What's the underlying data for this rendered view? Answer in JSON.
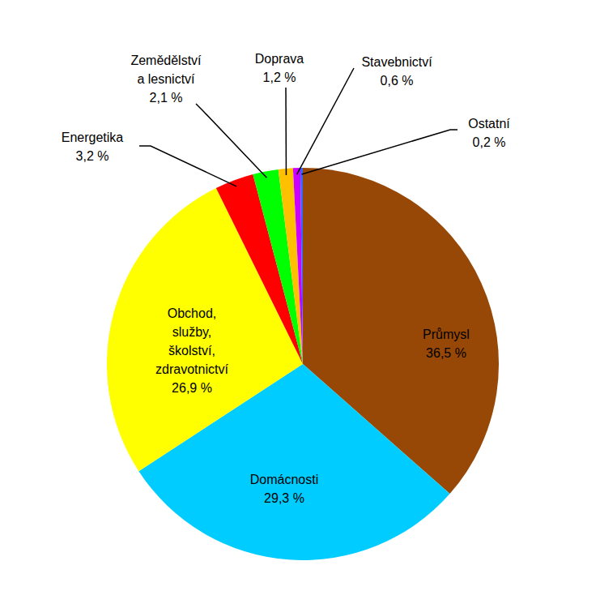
{
  "chart_data": {
    "type": "pie",
    "categories": [
      "Průmysl",
      "Domácnosti",
      "Obchod,\nslužby,\nškolství,\nzdravotnictví",
      "Energetika",
      "Zemědělství\na lesnictví",
      "Doprava",
      "Stavebnictví",
      "Ostatní"
    ],
    "values": [
      36.5,
      29.3,
      26.9,
      3.2,
      2.1,
      1.2,
      0.6,
      0.2
    ],
    "value_labels": [
      "36,5 %",
      "29,3 %",
      "26,9 %",
      "3,2 %",
      "2,1 %",
      "1,2 %",
      "0,6 %",
      "0,2 %"
    ],
    "colors": [
      "#974806",
      "#00ccff",
      "#ffff00",
      "#ff0000",
      "#00ff00",
      "#ffc000",
      "#cc00ff",
      "#3366ff"
    ],
    "data_labels": true
  }
}
